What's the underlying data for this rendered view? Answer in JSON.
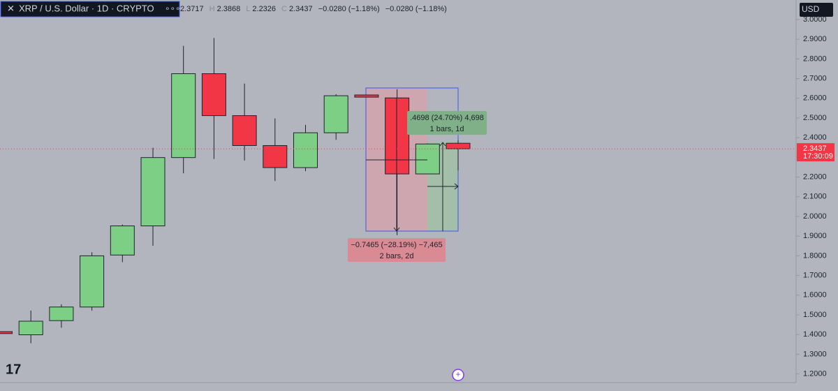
{
  "chart_data": {
    "type": "candlestick",
    "title": "XRP / U.S. Dollar · 1D · CRYPTO",
    "currency": "USD",
    "legend_labels": [
      "H",
      "L",
      "C"
    ],
    "change": "−0.0280 (−1.18%)",
    "countdown": "17:30:09",
    "open": [
      1.415,
      1.399,
      1.471,
      1.54,
      1.804,
      1.952,
      2.299,
      2.725,
      2.512,
      2.36,
      2.248,
      2.425,
      2.617,
      2.602,
      2.216,
      2.3717
    ],
    "high": [
      1.415,
      1.522,
      1.554,
      1.818,
      1.959,
      2.349,
      2.866,
      2.906,
      2.675,
      2.498,
      2.465,
      2.621,
      2.617,
      2.646,
      2.371,
      2.3868
    ],
    "low": [
      1.405,
      1.356,
      1.435,
      1.522,
      1.768,
      1.851,
      2.219,
      2.292,
      2.284,
      2.18,
      2.23,
      2.389,
      2.606,
      1.905,
      2.216,
      2.2326
    ],
    "close": [
      1.405,
      1.468,
      1.54,
      1.8,
      1.952,
      2.299,
      2.725,
      2.512,
      2.36,
      2.248,
      2.425,
      2.613,
      2.606,
      2.216,
      2.368,
      2.3437
    ],
    "up_color": "#7ecf86",
    "down_color": "#f23645",
    "ylim": [
      1.156,
      3.0
    ],
    "yticks": [
      {
        "value": 3.0,
        "label": "3.0000"
      },
      {
        "value": 2.9,
        "label": "2.9000"
      },
      {
        "value": 2.8,
        "label": "2.8000"
      },
      {
        "value": 2.7,
        "label": "2.7000"
      },
      {
        "value": 2.6,
        "label": "2.6000"
      },
      {
        "value": 2.5,
        "label": "2.5000"
      },
      {
        "value": 2.4,
        "label": "2.4000"
      },
      {
        "value": 2.3,
        "label": "2.3000"
      },
      {
        "value": 2.2,
        "label": "2.2000"
      },
      {
        "value": 2.1,
        "label": "2.1000"
      },
      {
        "value": 2.0,
        "label": "2.0000"
      },
      {
        "value": 1.9,
        "label": "1.9000"
      },
      {
        "value": 1.8,
        "label": "1.8000"
      },
      {
        "value": 1.7,
        "label": "1.7000"
      },
      {
        "value": 1.6,
        "label": "1.6000"
      },
      {
        "value": 1.5,
        "label": "1.5000"
      },
      {
        "value": 1.4,
        "label": "1.4000"
      },
      {
        "value": 1.3,
        "label": "1.3000"
      },
      {
        "value": 1.2,
        "label": "1.2000"
      }
    ],
    "annotations": {
      "rise": {
        "line1": ".4698 (24.70%) 4,698",
        "line2": "1 bars, 1d"
      },
      "fall": {
        "line1": "−0.7465 (−28.19%) −7,465",
        "line2": "2 bars, 2d"
      }
    }
  }
}
